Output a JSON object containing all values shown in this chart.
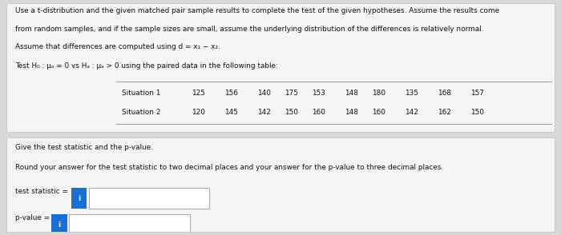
{
  "line1": "Use a t-distribution and the given matched pair sample results to complete the test of the given hypotheses. Assume the results come",
  "line2": "from random samples, and if the sample sizes are small, assume the underlying distribution of the differences is relatively normal.",
  "line3": "Assume that differences are computed using d = x₁ − x₂.",
  "hypothesis_text": "Test H₀ : μₐ = 0 vs Hₐ : μₐ > 0 using the paired data in the following table:",
  "situation1_label": "Situation 1",
  "situation2_label": "Situation 2",
  "situation1_values": [
    125,
    156,
    140,
    175,
    153,
    148,
    180,
    135,
    168,
    157
  ],
  "situation2_values": [
    120,
    145,
    142,
    150,
    160,
    148,
    160,
    142,
    162,
    150
  ],
  "bottom_title": "Give the test statistic and the p-value.",
  "bottom_subtitle": "Round your answer for the test statistic to two decimal places and your answer for the p-value to three decimal places.",
  "label_test_stat": "test statistic =",
  "label_pvalue": "p-value =",
  "outer_bg": "#d8d8d8",
  "panel_bg": "#f5f5f5",
  "panel_border": "#cccccc",
  "text_color": "#111111",
  "blue_icon_color": "#1a6fd4",
  "input_bg": "#ffffff",
  "input_border": "#aaaaaa",
  "font_size_body": 6.8,
  "font_size_small": 6.4
}
